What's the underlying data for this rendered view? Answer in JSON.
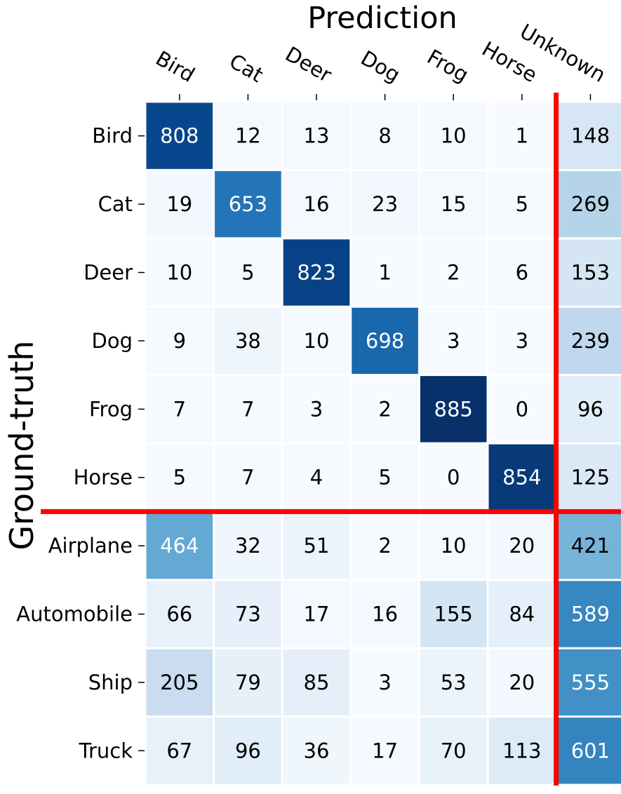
{
  "chart_data": {
    "type": "heatmap",
    "title": "Prediction",
    "xlabel": "Prediction",
    "ylabel": "Ground-truth",
    "x_categories": [
      "Bird",
      "Cat",
      "Deer",
      "Dog",
      "Frog",
      "Horse",
      "Unknown"
    ],
    "y_categories": [
      "Bird",
      "Cat",
      "Deer",
      "Dog",
      "Frog",
      "Horse",
      "Airplane",
      "Automobile",
      "Ship",
      "Truck"
    ],
    "values": [
      [
        808,
        12,
        13,
        8,
        10,
        1,
        148
      ],
      [
        19,
        653,
        16,
        23,
        15,
        5,
        269
      ],
      [
        10,
        5,
        823,
        1,
        2,
        6,
        153
      ],
      [
        9,
        38,
        10,
        698,
        3,
        3,
        239
      ],
      [
        7,
        7,
        3,
        2,
        885,
        0,
        96
      ],
      [
        5,
        7,
        4,
        5,
        0,
        854,
        125
      ],
      [
        464,
        32,
        51,
        2,
        10,
        20,
        421
      ],
      [
        66,
        73,
        17,
        16,
        155,
        84,
        589
      ],
      [
        205,
        79,
        85,
        3,
        53,
        20,
        555
      ],
      [
        67,
        96,
        36,
        17,
        70,
        113,
        601
      ]
    ],
    "colormap": "Blues",
    "value_range": [
      0,
      885
    ],
    "separators": {
      "after_column": "Horse",
      "after_row": "Horse",
      "color": "#ff0000"
    }
  }
}
